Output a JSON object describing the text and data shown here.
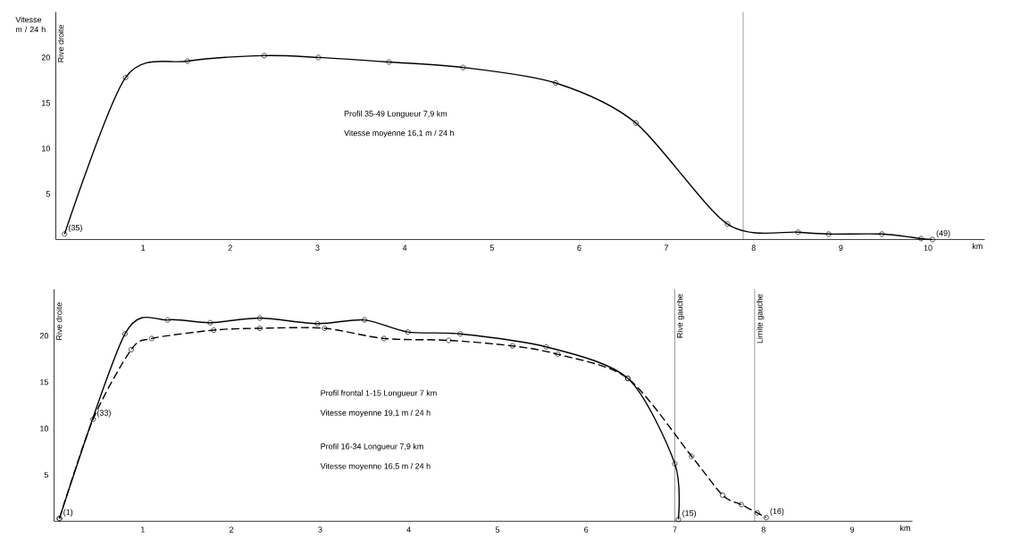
{
  "chart_data": [
    {
      "type": "line",
      "ylabel": "Vitesse m / 24 h",
      "xlabel": "km",
      "xlim": [
        0,
        10.65
      ],
      "ylim": [
        0,
        25
      ],
      "xticks": [
        1,
        2,
        3,
        4,
        5,
        6,
        7,
        8,
        9,
        10
      ],
      "yticks": [
        5,
        10,
        15,
        20
      ],
      "marker": "circle",
      "series": [
        {
          "color": "#000000",
          "line_style": "solid",
          "x": [
            0.1,
            0.8,
            1.51,
            2.39,
            3.01,
            3.82,
            4.67,
            5.73,
            6.65,
            7.7,
            8.51,
            8.86,
            9.47,
            9.92,
            10.05
          ],
          "values": [
            0.6,
            17.8,
            19.6,
            20.2,
            20.0,
            19.5,
            18.9,
            17.2,
            12.8,
            1.7,
            0.8,
            0.6,
            0.6,
            0.1,
            0
          ]
        }
      ],
      "ref_lines": [
        {
          "axis": "x",
          "value": 7.88,
          "label": null
        }
      ],
      "annotations": [
        {
          "text": "(35)",
          "x": 0.1,
          "y": 0.6
        },
        {
          "text": "(49)",
          "x": 10.05,
          "y": 0
        },
        "Rive droite",
        "Profil 35-49 Longueur 7,9 km",
        "Vitesse moyenne 16,1 m / 24 h"
      ]
    },
    {
      "type": "line",
      "xlabel": "km",
      "xlim": [
        0,
        9.68
      ],
      "ylim": [
        0,
        25
      ],
      "xticks": [
        1,
        2,
        3,
        4,
        5,
        6,
        7,
        8,
        9
      ],
      "yticks": [
        5,
        10,
        15,
        20
      ],
      "marker": "circle",
      "series": [
        {
          "color": "#000000",
          "line_style": "solid",
          "x": [
            0.06,
            0.8,
            1.28,
            1.76,
            2.32,
            2.97,
            3.5,
            3.99,
            4.58,
            5.55,
            6.47,
            7.0,
            7.04
          ],
          "values": [
            0.3,
            20.2,
            21.7,
            21.4,
            21.9,
            21.3,
            21.7,
            20.4,
            20.2,
            18.8,
            15.4,
            6.2,
            0.2
          ]
        },
        {
          "color": "#000000",
          "line_style": "dashed",
          "x": [
            0.06,
            0.44,
            0.87,
            1.1,
            1.8,
            2.32,
            3.05,
            3.72,
            4.45,
            5.17,
            5.68,
            6.47,
            7.19,
            7.54,
            7.75,
            7.93,
            8.03
          ],
          "values": [
            0.3,
            11.0,
            18.5,
            19.7,
            20.6,
            20.8,
            20.8,
            19.7,
            19.5,
            18.9,
            18.0,
            15.4,
            7.0,
            2.8,
            1.8,
            0.9,
            0.4
          ]
        }
      ],
      "ref_lines": [
        {
          "axis": "x",
          "value": 7.0,
          "label": "Rive gauche"
        },
        {
          "axis": "x",
          "value": 7.9,
          "label": "Limite gauche"
        }
      ],
      "annotations": [
        {
          "text": "(1)",
          "x": 0.06,
          "y": 0.3
        },
        {
          "text": "(33)",
          "x": 0.44,
          "y": 11.0
        },
        {
          "text": "(15)",
          "x": 7.04,
          "y": 0.2
        },
        {
          "text": "(16)",
          "x": 8.03,
          "y": 0.4
        },
        "Rive droite",
        "Profil frontal 1-15 Longueur 7 km",
        "Vitesse moyenne 19,1 m / 24 h",
        "Profil 16-34 Longueur 7,9 km",
        "Vitesse moyenne 16,5 m / 24 h"
      ]
    }
  ]
}
